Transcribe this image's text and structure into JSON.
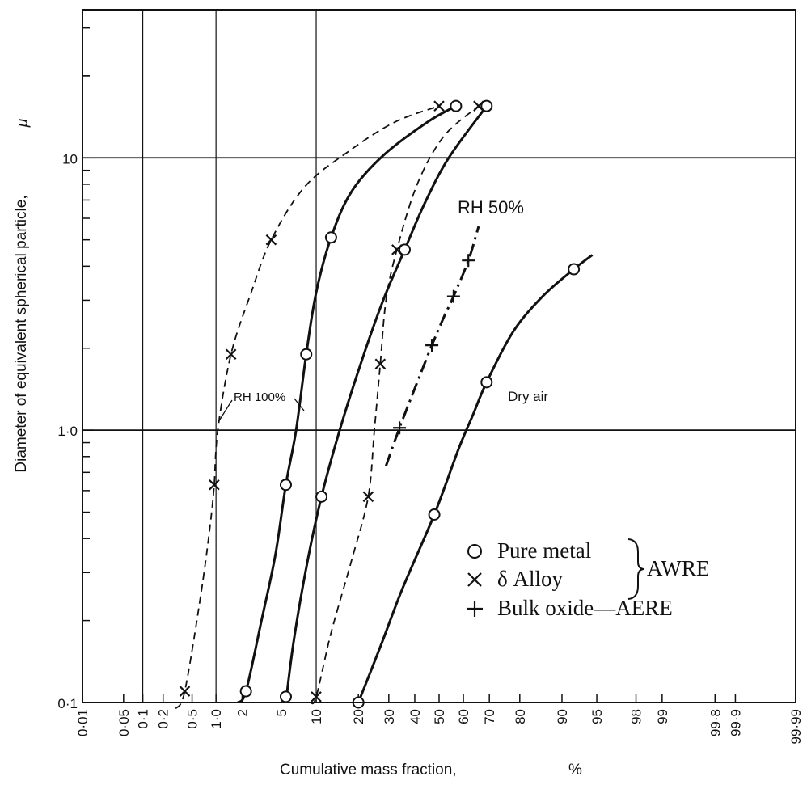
{
  "chart_data": {
    "type": "line",
    "xlabel": "Cumulative mass fraction,",
    "xunit": "%",
    "ylabel": "Diameter of equivalent spherical particle,",
    "yunit": "μ",
    "x_scale": "probability",
    "y_scale": "log",
    "xlim": [
      0.01,
      99.99
    ],
    "ylim": [
      0.1,
      35
    ],
    "x_ticks": [
      0.01,
      0.05,
      0.1,
      0.2,
      0.5,
      1.0,
      2,
      5,
      10,
      20,
      30,
      40,
      50,
      60,
      70,
      80,
      90,
      95,
      98,
      99,
      99.8,
      99.9,
      99.99
    ],
    "x_tick_labels": [
      "0·01",
      "0·05",
      "0·1",
      "0·2",
      "0·5",
      "1·0",
      "2",
      "5",
      "10",
      "20",
      "30",
      "40",
      "50",
      "60",
      "70",
      "80",
      "90",
      "95",
      "98",
      "99",
      "99·8",
      "99·9",
      "99·99"
    ],
    "y_ticks": [
      0.1,
      1.0,
      10
    ],
    "y_tick_labels": [
      "0·1",
      "1·0",
      "10"
    ],
    "grid": "major gridlines only",
    "annotations": [
      "RH 50%",
      "RH 100%",
      "Dry air"
    ],
    "legend": {
      "placement": "lower-right",
      "entries": [
        {
          "marker": "circle",
          "label": "Pure metal"
        },
        {
          "marker": "x",
          "label": "δ Alloy"
        },
        {
          "marker": "plus",
          "label": "Bulk oxide—AERE"
        }
      ],
      "brace_label": "AWRE"
    },
    "series": [
      {
        "marker": "circle",
        "style": "solid",
        "points": [
          [
            2.2,
            0.11
          ],
          [
            5.5,
            0.63
          ],
          [
            8.3,
            1.9
          ],
          [
            13,
            5.1
          ],
          [
            57,
            15.5
          ]
        ],
        "curve": [
          [
            1.8,
            0.1
          ],
          [
            2.2,
            0.11
          ],
          [
            3.2,
            0.2
          ],
          [
            4.4,
            0.35
          ],
          [
            5.5,
            0.63
          ],
          [
            6.8,
            1.0
          ],
          [
            8.3,
            1.9
          ],
          [
            10,
            3.2
          ],
          [
            13,
            5.1
          ],
          [
            18,
            7.5
          ],
          [
            28,
            10.2
          ],
          [
            45,
            13.5
          ],
          [
            57,
            15.5
          ]
        ]
      },
      {
        "marker": "x",
        "style": "dashed",
        "points": [
          [
            0.4,
            0.11
          ],
          [
            0.95,
            0.63
          ],
          [
            1.5,
            1.9
          ],
          [
            4,
            5.0
          ],
          [
            50,
            15.5
          ]
        ],
        "curve": [
          [
            0.3,
            0.095
          ],
          [
            0.4,
            0.11
          ],
          [
            0.65,
            0.25
          ],
          [
            0.85,
            0.45
          ],
          [
            0.95,
            0.63
          ],
          [
            1.05,
            1.0
          ],
          [
            1.5,
            1.9
          ],
          [
            2.5,
            3.2
          ],
          [
            4,
            5.0
          ],
          [
            8,
            7.8
          ],
          [
            17,
            10.5
          ],
          [
            32,
            13.5
          ],
          [
            50,
            15.5
          ]
        ]
      },
      {
        "marker": "circle",
        "style": "solid",
        "points": [
          [
            5.5,
            0.105
          ],
          [
            11,
            0.57
          ],
          [
            36,
            4.6
          ],
          [
            69,
            15.5
          ]
        ],
        "curve": [
          [
            5.5,
            0.1
          ],
          [
            6.5,
            0.17
          ],
          [
            8.5,
            0.33
          ],
          [
            11,
            0.57
          ],
          [
            15,
            1.0
          ],
          [
            21,
            1.8
          ],
          [
            28,
            3.0
          ],
          [
            36,
            4.6
          ],
          [
            44,
            6.8
          ],
          [
            54,
            10.0
          ],
          [
            69,
            15.5
          ]
        ]
      },
      {
        "marker": "x",
        "style": "dashed",
        "points": [
          [
            10,
            0.105
          ],
          [
            23,
            0.57
          ],
          [
            27,
            1.75
          ],
          [
            33,
            4.6
          ],
          [
            66,
            15.5
          ]
        ],
        "curve": [
          [
            9,
            0.1
          ],
          [
            10,
            0.105
          ],
          [
            13,
            0.18
          ],
          [
            18,
            0.33
          ],
          [
            23,
            0.57
          ],
          [
            25,
            1.0
          ],
          [
            27,
            1.75
          ],
          [
            29,
            3.0
          ],
          [
            33,
            4.6
          ],
          [
            41,
            8.0
          ],
          [
            52,
            12.0
          ],
          [
            66,
            15.5
          ]
        ]
      },
      {
        "marker": "circle",
        "style": "solid",
        "points": [
          [
            20,
            0.1
          ],
          [
            48,
            0.49
          ],
          [
            69,
            1.5
          ],
          [
            92,
            3.9
          ]
        ],
        "curve": [
          [
            20,
            0.1
          ],
          [
            27,
            0.16
          ],
          [
            35,
            0.26
          ],
          [
            48,
            0.49
          ],
          [
            58,
            0.85
          ],
          [
            64,
            1.15
          ],
          [
            69,
            1.5
          ],
          [
            78,
            2.3
          ],
          [
            86,
            3.1
          ],
          [
            92,
            3.9
          ],
          [
            94.5,
            4.4
          ]
        ]
      },
      {
        "marker": "plus",
        "style": "dash-dot",
        "points": [
          [
            34,
            1.02
          ],
          [
            47,
            2.05
          ],
          [
            56,
            3.1
          ],
          [
            62,
            4.2
          ]
        ],
        "curve": [
          [
            29,
            0.74
          ],
          [
            34,
            1.02
          ],
          [
            41,
            1.5
          ],
          [
            47,
            2.05
          ],
          [
            52,
            2.6
          ],
          [
            56,
            3.1
          ],
          [
            62,
            4.2
          ],
          [
            66,
            5.6
          ]
        ]
      }
    ]
  }
}
